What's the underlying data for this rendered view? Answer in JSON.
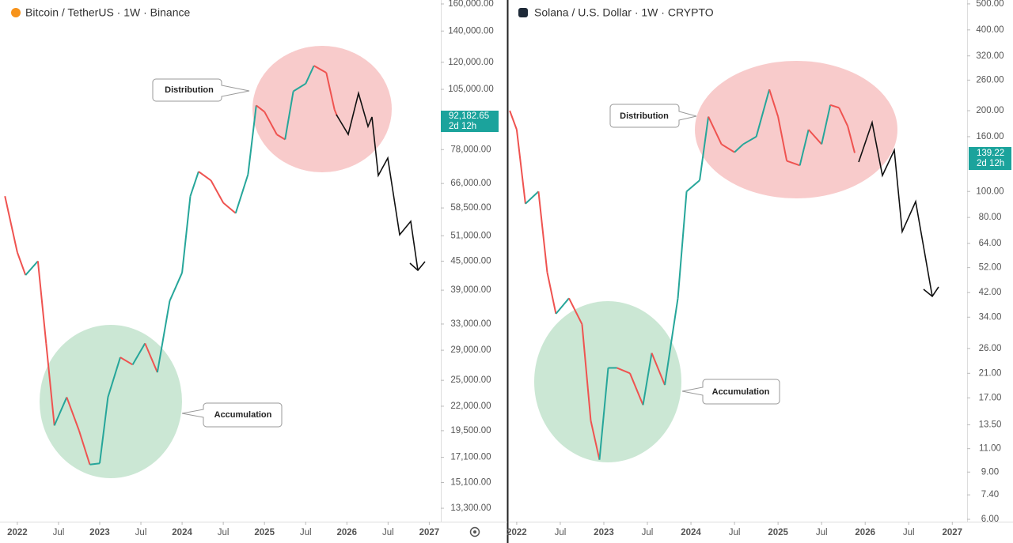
{
  "chart_data": [
    {
      "type": "line",
      "title": "Bitcoin / TetherUS · 1W · Binance",
      "log_scale": true,
      "up_color": "#26a69a",
      "down_color": "#ef5350",
      "xlim": [
        2021.79,
        2027.14
      ],
      "xticks": [
        {
          "value": 2022,
          "label": "2022"
        },
        {
          "value": 2022.5,
          "label": "Jul"
        },
        {
          "value": 2023,
          "label": "2023"
        },
        {
          "value": 2023.5,
          "label": "Jul"
        },
        {
          "value": 2024,
          "label": "2024"
        },
        {
          "value": 2024.5,
          "label": "Jul"
        },
        {
          "value": 2025,
          "label": "2025"
        },
        {
          "value": 2025.5,
          "label": "Jul"
        },
        {
          "value": 2026,
          "label": "2026"
        },
        {
          "value": 2026.5,
          "label": "Jul"
        },
        {
          "value": 2027,
          "label": "2027"
        }
      ],
      "ylim": [
        12450,
        163150
      ],
      "yticks": [
        {
          "value": 160000,
          "label": "160,000.00"
        },
        {
          "value": 140000,
          "label": "140,000.00"
        },
        {
          "value": 120000,
          "label": "120,000.00"
        },
        {
          "value": 105000,
          "label": "105,000.00"
        },
        {
          "value": 78000,
          "label": "78,000.00"
        },
        {
          "value": 66000,
          "label": "66,000.00"
        },
        {
          "value": 58500,
          "label": "58,500.00"
        },
        {
          "value": 51000,
          "label": "51,000.00"
        },
        {
          "value": 45000,
          "label": "45,000.00"
        },
        {
          "value": 39000,
          "label": "39,000.00"
        },
        {
          "value": 33000,
          "label": "33,000.00"
        },
        {
          "value": 29000,
          "label": "29,000.00"
        },
        {
          "value": 25000,
          "label": "25,000.00"
        },
        {
          "value": 22000,
          "label": "22,000.00"
        },
        {
          "value": 19500,
          "label": "19,500.00"
        },
        {
          "value": 17100,
          "label": "17,100.00"
        },
        {
          "value": 15100,
          "label": "15,100.00"
        },
        {
          "value": 13300,
          "label": "13,300.00"
        }
      ],
      "x": [
        2021.85,
        2022.0,
        2022.1,
        2022.25,
        2022.35,
        2022.45,
        2022.6,
        2022.75,
        2022.88,
        2023.0,
        2023.1,
        2023.25,
        2023.4,
        2023.55,
        2023.7,
        2023.85,
        2024.0,
        2024.1,
        2024.2,
        2024.35,
        2024.5,
        2024.65,
        2024.8,
        2024.9,
        2025.0,
        2025.15,
        2025.25,
        2025.35,
        2025.5,
        2025.6,
        2025.75,
        2025.85,
        2025.88
      ],
      "values": [
        62000,
        47000,
        42000,
        45000,
        30000,
        20000,
        23000,
        19500,
        16500,
        16600,
        23000,
        28000,
        27000,
        30000,
        26000,
        37000,
        42500,
        62000,
        70000,
        67000,
        60000,
        57000,
        69000,
        97000,
        94000,
        84000,
        82000,
        104000,
        108000,
        118000,
        114000,
        95000,
        92182.65
      ],
      "price_label": "92,182.65",
      "countdown": "2d 12h",
      "annotations": [
        "Distribution",
        "Accumulation"
      ]
    },
    {
      "type": "line",
      "title": "Solana / U.S. Dollar · 1W · CRYPTO",
      "log_scale": true,
      "up_color": "#26a69a",
      "down_color": "#ef5350",
      "xlim": [
        2021.91,
        2027.17
      ],
      "xticks": [
        {
          "value": 2022,
          "label": "2022"
        },
        {
          "value": 2022.5,
          "label": "Jul"
        },
        {
          "value": 2023,
          "label": "2023"
        },
        {
          "value": 2023.5,
          "label": "Jul"
        },
        {
          "value": 2024,
          "label": "2024"
        },
        {
          "value": 2024.5,
          "label": "Jul"
        },
        {
          "value": 2025,
          "label": "2025"
        },
        {
          "value": 2025.5,
          "label": "Jul"
        },
        {
          "value": 2026,
          "label": "2026"
        },
        {
          "value": 2026.5,
          "label": "Jul"
        },
        {
          "value": 2027,
          "label": "2027"
        }
      ],
      "ylim": [
        5.88,
        517
      ],
      "yticks": [
        {
          "value": 500,
          "label": "500.00"
        },
        {
          "value": 400,
          "label": "400.00"
        },
        {
          "value": 320,
          "label": "320.00"
        },
        {
          "value": 260,
          "label": "260.00"
        },
        {
          "value": 200,
          "label": "200.00"
        },
        {
          "value": 160,
          "label": "160.00"
        },
        {
          "value": 100,
          "label": "100.00"
        },
        {
          "value": 80,
          "label": "80.00"
        },
        {
          "value": 64,
          "label": "64.00"
        },
        {
          "value": 52,
          "label": "52.00"
        },
        {
          "value": 42,
          "label": "42.00"
        },
        {
          "value": 34,
          "label": "34.00"
        },
        {
          "value": 26,
          "label": "26.00"
        },
        {
          "value": 21,
          "label": "21.00"
        },
        {
          "value": 17,
          "label": "17.00"
        },
        {
          "value": 13.5,
          "label": "13.50"
        },
        {
          "value": 11,
          "label": "11.00"
        },
        {
          "value": 9,
          "label": "9.00"
        },
        {
          "value": 7.4,
          "label": "7.40"
        },
        {
          "value": 6,
          "label": "6.00"
        }
      ],
      "x": [
        2021.92,
        2022.0,
        2022.1,
        2022.25,
        2022.35,
        2022.45,
        2022.6,
        2022.75,
        2022.85,
        2022.95,
        2023.05,
        2023.15,
        2023.3,
        2023.45,
        2023.55,
        2023.7,
        2023.85,
        2023.95,
        2024.1,
        2024.2,
        2024.35,
        2024.5,
        2024.6,
        2024.75,
        2024.9,
        2025.0,
        2025.1,
        2025.25,
        2025.35,
        2025.5,
        2025.6,
        2025.7,
        2025.8,
        2025.88
      ],
      "values": [
        200,
        170,
        90,
        100,
        50,
        35,
        40,
        32,
        14,
        10,
        22,
        22,
        21,
        16,
        25,
        19,
        40,
        100,
        110,
        190,
        150,
        140,
        150,
        160,
        240,
        190,
        130,
        125,
        170,
        150,
        210,
        205,
        175,
        139.22
      ],
      "price_label": "139.22",
      "countdown": "2d 12h",
      "annotations": [
        "Distribution",
        "Accumulation"
      ]
    }
  ]
}
